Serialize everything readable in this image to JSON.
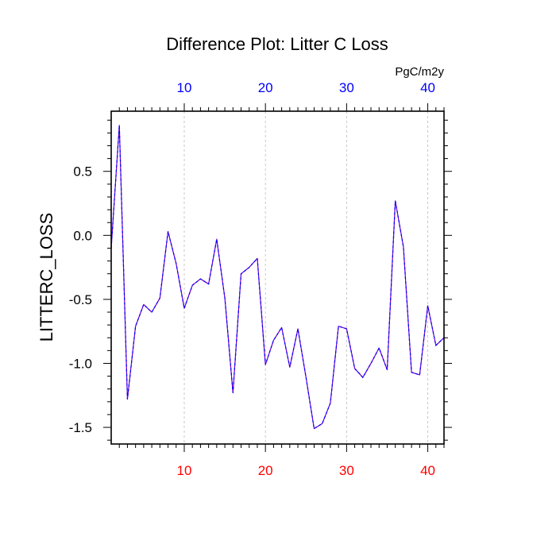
{
  "chart_data": {
    "type": "line",
    "title": "Difference Plot: Litter C Loss",
    "ylabel": "LITTERC_LOSS",
    "units_label": "PgC/m2y",
    "xlim": [
      1,
      42
    ],
    "ylim": [
      -1.63,
      0.97
    ],
    "x_ticks": [
      10,
      20,
      30,
      40
    ],
    "y_ticks": [
      -1.5,
      -1.0,
      -0.5,
      0.0,
      0.5
    ],
    "y_tick_labels": [
      "-1.5",
      "-1.0",
      "-0.5",
      "0.0",
      "0.5"
    ],
    "grid": "vertical dashed at major x ticks",
    "series": [
      {
        "color": "#7700cc",
        "dash_color": "#0000ff",
        "x": [
          1,
          2,
          3,
          4,
          5,
          6,
          7,
          8,
          9,
          10,
          11,
          12,
          13,
          14,
          15,
          16,
          17,
          18,
          19,
          20,
          21,
          22,
          23,
          24,
          25,
          26,
          27,
          28,
          29,
          30,
          31,
          32,
          33,
          34,
          35,
          36,
          37,
          38,
          39,
          40,
          41,
          42
        ],
        "values": [
          -0.1,
          0.86,
          -1.28,
          -0.71,
          -0.54,
          -0.6,
          -0.49,
          0.03,
          -0.22,
          -0.57,
          -0.39,
          -0.34,
          -0.38,
          -0.03,
          -0.49,
          -1.23,
          -0.3,
          -0.25,
          -0.18,
          -1.01,
          -0.82,
          -0.72,
          -1.03,
          -0.73,
          -1.11,
          -1.51,
          -1.47,
          -1.31,
          -0.71,
          -0.73,
          -1.04,
          -1.11,
          -1.0,
          -0.88,
          -1.05,
          0.27,
          -0.09,
          -1.07,
          -1.09,
          -0.55,
          -0.86,
          -0.8
        ]
      }
    ],
    "bottom_axis_color": "#ff0000",
    "top_axis_color": "#0000ff"
  }
}
